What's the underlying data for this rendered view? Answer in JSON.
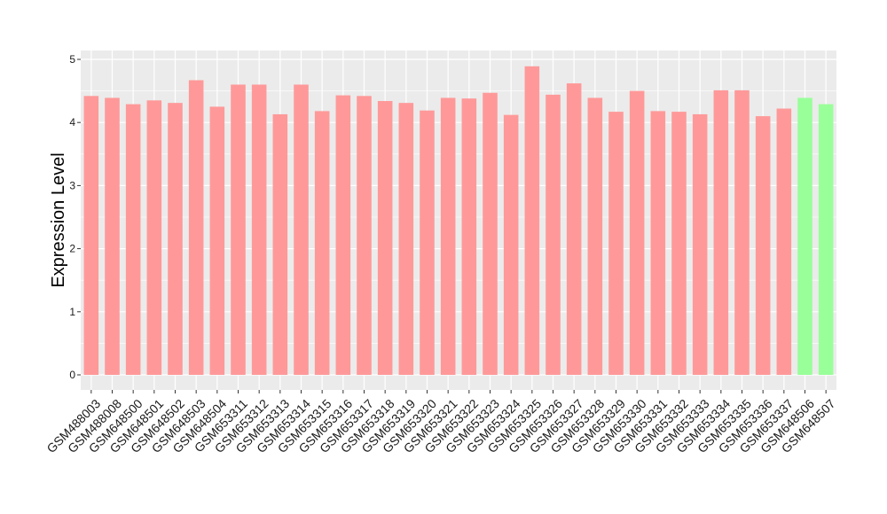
{
  "chart_data": {
    "type": "bar",
    "xlabel": "",
    "ylabel": "Expression Level",
    "ylim": [
      0,
      5
    ],
    "yticks": [
      0,
      1,
      2,
      3,
      4,
      5
    ],
    "grid": true,
    "legend": "none",
    "categories": [
      "GSM488003",
      "GSM488008",
      "GSM648500",
      "GSM648501",
      "GSM648502",
      "GSM648503",
      "GSM648504",
      "GSM653311",
      "GSM653312",
      "GSM653313",
      "GSM653314",
      "GSM653315",
      "GSM653316",
      "GSM653317",
      "GSM653318",
      "GSM653319",
      "GSM653320",
      "GSM653321",
      "GSM653322",
      "GSM653323",
      "GSM653324",
      "GSM653325",
      "GSM653326",
      "GSM653327",
      "GSM653328",
      "GSM653329",
      "GSM653330",
      "GSM653331",
      "GSM653332",
      "GSM653333",
      "GSM653334",
      "GSM653335",
      "GSM653336",
      "GSM653337",
      "GSM648506",
      "GSM648507"
    ],
    "values": [
      4.42,
      4.39,
      4.29,
      4.35,
      4.31,
      4.67,
      4.25,
      4.6,
      4.6,
      4.13,
      4.6,
      4.18,
      4.43,
      4.42,
      4.34,
      4.31,
      4.19,
      4.39,
      4.38,
      4.47,
      4.12,
      4.89,
      4.44,
      4.62,
      4.39,
      4.17,
      4.5,
      4.18,
      4.17,
      4.13,
      4.51,
      4.51,
      4.1,
      4.22,
      4.39,
      4.29
    ],
    "groups": [
      "a",
      "a",
      "a",
      "a",
      "a",
      "a",
      "a",
      "a",
      "a",
      "a",
      "a",
      "a",
      "a",
      "a",
      "a",
      "a",
      "a",
      "a",
      "a",
      "a",
      "a",
      "a",
      "a",
      "a",
      "a",
      "a",
      "a",
      "a",
      "a",
      "a",
      "a",
      "a",
      "a",
      "a",
      "b",
      "b"
    ],
    "colors": {
      "a": "#ff9999",
      "b": "#99ff99"
    },
    "panel_background": "#ebebeb",
    "grid_color": "#ffffff"
  }
}
